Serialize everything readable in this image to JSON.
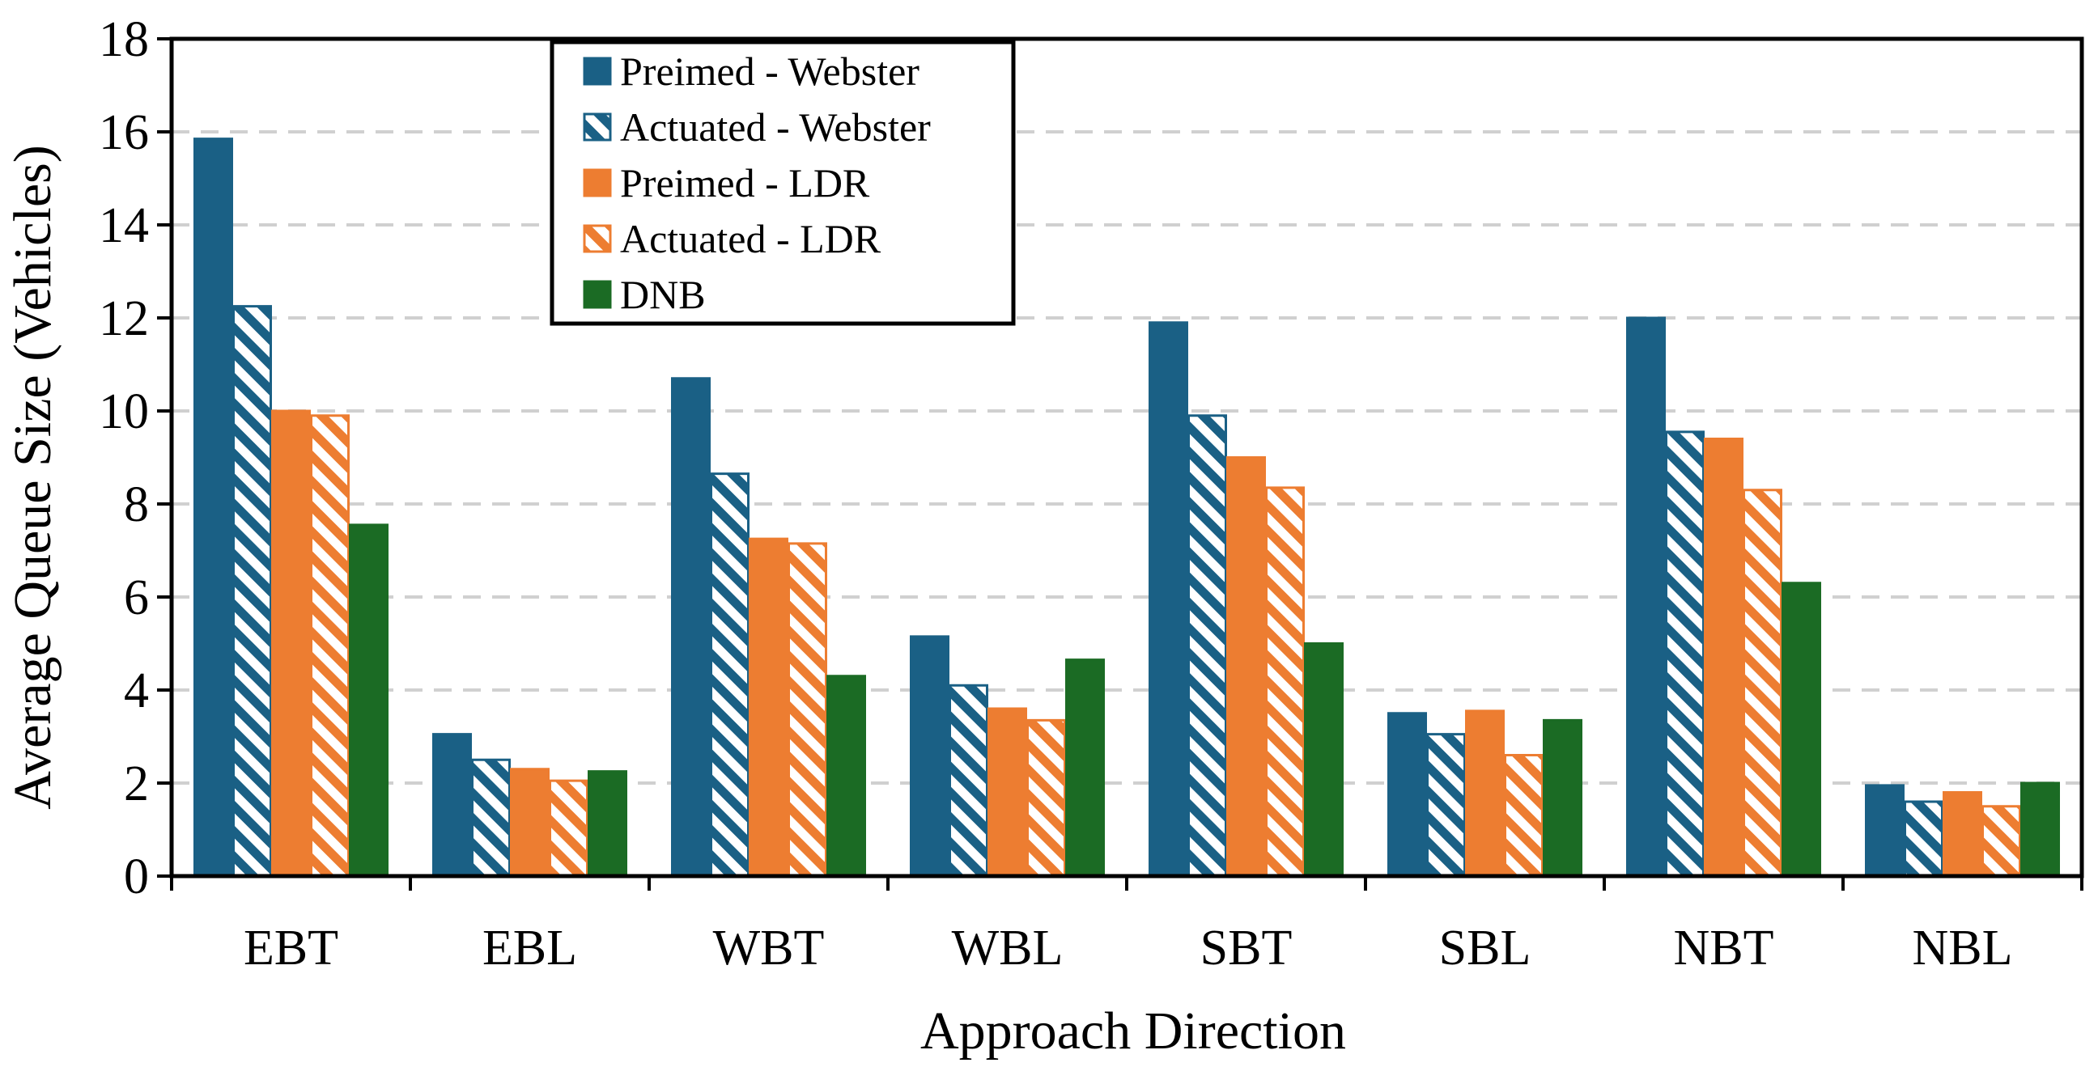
{
  "chart_data": {
    "type": "bar",
    "title": "",
    "xlabel": "Approach Direction",
    "ylabel": "Average Queue Size (Vehicles)",
    "ylim": [
      0,
      18
    ],
    "yticks": [
      0,
      2,
      4,
      6,
      8,
      10,
      12,
      14,
      16,
      18
    ],
    "grid": true,
    "legend_position": "top-left",
    "categories": [
      "EBT",
      "EBL",
      "WBT",
      "WBL",
      "SBT",
      "SBL",
      "NBT",
      "NBL"
    ],
    "series": [
      {
        "name": "Preimed - Webster",
        "color": "#1a6085",
        "pattern": "solid",
        "values": [
          15.85,
          3.05,
          10.7,
          5.15,
          11.9,
          3.5,
          12.0,
          1.95
        ]
      },
      {
        "name": "Actuated - Webster",
        "color": "#1a6085",
        "pattern": "hatch",
        "values": [
          12.25,
          2.5,
          8.65,
          4.1,
          9.9,
          3.05,
          9.55,
          1.6
        ]
      },
      {
        "name": "Preimed - LDR",
        "color": "#ed7d31",
        "pattern": "solid",
        "values": [
          10.0,
          2.3,
          7.25,
          3.6,
          9.0,
          3.55,
          9.4,
          1.8
        ]
      },
      {
        "name": "Actuated - LDR",
        "color": "#ed7d31",
        "pattern": "hatch",
        "values": [
          9.9,
          2.05,
          7.15,
          3.35,
          8.35,
          2.6,
          8.3,
          1.5
        ]
      },
      {
        "name": "DNB",
        "color": "#1b6b24",
        "pattern": "solid",
        "values": [
          7.55,
          2.25,
          4.3,
          4.65,
          5.0,
          3.35,
          6.3,
          2.0
        ]
      }
    ]
  }
}
